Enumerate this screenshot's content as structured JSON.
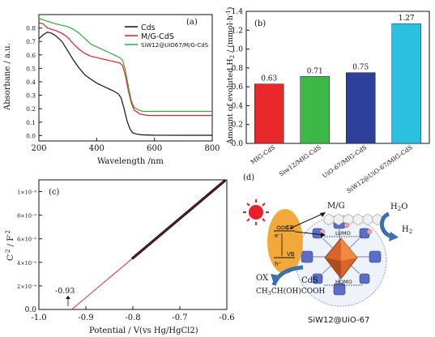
{
  "chart_data": [
    {
      "panel": "(a)",
      "type": "line",
      "xlabel": "Wavelength  /nm",
      "ylabel": "Absorbane / a.u.",
      "xlim": [
        200,
        800
      ],
      "ylim": [
        -0.04,
        0.9
      ],
      "xticks": [
        200,
        400,
        600,
        800
      ],
      "yticks": [
        0.0,
        0.1,
        0.2,
        0.3,
        0.4,
        0.5,
        0.6,
        0.7,
        0.8
      ],
      "ytick_labels": [
        "0.0",
        "0.1",
        "0.2",
        "0.3",
        "0.4",
        "0.5",
        "0.6",
        "0.7",
        "0.8"
      ],
      "legend_position": "top-right",
      "series": [
        {
          "name": "Cds",
          "color": "#111111",
          "points": [
            [
              200,
              0.72
            ],
            [
              215,
              0.75
            ],
            [
              230,
              0.77
            ],
            [
              245,
              0.76
            ],
            [
              260,
              0.74
            ],
            [
              280,
              0.7
            ],
            [
              300,
              0.63
            ],
            [
              320,
              0.56
            ],
            [
              340,
              0.5
            ],
            [
              360,
              0.45
            ],
            [
              380,
              0.42
            ],
            [
              400,
              0.39
            ],
            [
              420,
              0.37
            ],
            [
              440,
              0.35
            ],
            [
              460,
              0.33
            ],
            [
              475,
              0.31
            ],
            [
              485,
              0.28
            ],
            [
              495,
              0.2
            ],
            [
              505,
              0.11
            ],
            [
              515,
              0.05
            ],
            [
              525,
              0.02
            ],
            [
              540,
              0.01
            ],
            [
              560,
              0.005
            ],
            [
              600,
              0.003
            ],
            [
              700,
              0.002
            ],
            [
              800,
              0.002
            ]
          ]
        },
        {
          "name": "M/G-CdS",
          "color": "#e02020",
          "points": [
            [
              200,
              0.84
            ],
            [
              215,
              0.83
            ],
            [
              230,
              0.8
            ],
            [
              245,
              0.79
            ],
            [
              260,
              0.78
            ],
            [
              280,
              0.76
            ],
            [
              300,
              0.73
            ],
            [
              320,
              0.68
            ],
            [
              340,
              0.64
            ],
            [
              360,
              0.61
            ],
            [
              380,
              0.59
            ],
            [
              400,
              0.58
            ],
            [
              420,
              0.57
            ],
            [
              440,
              0.56
            ],
            [
              460,
              0.55
            ],
            [
              480,
              0.54
            ],
            [
              490,
              0.52
            ],
            [
              500,
              0.44
            ],
            [
              510,
              0.33
            ],
            [
              520,
              0.24
            ],
            [
              530,
              0.19
            ],
            [
              550,
              0.16
            ],
            [
              575,
              0.15
            ],
            [
              600,
              0.15
            ],
            [
              700,
              0.15
            ],
            [
              800,
              0.15
            ]
          ]
        },
        {
          "name": "SiW12@UiO67/M/G-CdS",
          "color": "#30b030",
          "points": [
            [
              200,
              0.87
            ],
            [
              215,
              0.86
            ],
            [
              230,
              0.85
            ],
            [
              245,
              0.84
            ],
            [
              260,
              0.83
            ],
            [
              280,
              0.82
            ],
            [
              300,
              0.81
            ],
            [
              320,
              0.79
            ],
            [
              340,
              0.76
            ],
            [
              360,
              0.72
            ],
            [
              380,
              0.68
            ],
            [
              400,
              0.66
            ],
            [
              420,
              0.64
            ],
            [
              440,
              0.62
            ],
            [
              460,
              0.6
            ],
            [
              480,
              0.58
            ],
            [
              490,
              0.56
            ],
            [
              500,
              0.48
            ],
            [
              510,
              0.36
            ],
            [
              520,
              0.26
            ],
            [
              530,
              0.21
            ],
            [
              545,
              0.19
            ],
            [
              560,
              0.18
            ],
            [
              600,
              0.18
            ],
            [
              700,
              0.18
            ],
            [
              800,
              0.18
            ]
          ]
        }
      ]
    },
    {
      "panel": "(b)",
      "type": "bar",
      "ylabel": "Amount of evolution H2 / (mmol·h⁻¹)",
      "ylim": [
        0,
        1.4
      ],
      "yticks": [
        0.0,
        0.2,
        0.4,
        0.6,
        0.8,
        1.0,
        1.2,
        1.4
      ],
      "categories": [
        "MIG-CdS",
        "Siw12/MIG-CdS",
        "UiO-67/MIG-CdS",
        "SiW12@UiO-67/MIG-CdS"
      ],
      "values": [
        0.63,
        0.71,
        0.75,
        1.27
      ],
      "value_labels": [
        "0.63",
        "0.71",
        "0.75",
        "1.27"
      ],
      "colors": [
        "#e8282a",
        "#3cb846",
        "#2e3f9a",
        "#2cc0e0"
      ]
    },
    {
      "panel": "(c)",
      "type": "scatter",
      "xlabel": "Potential / V(vs Hg/HgCl2)",
      "ylabel": "C-2 / F-2",
      "xlim": [
        -1.0,
        -0.6
      ],
      "ylim": [
        0,
        1.1e-08
      ],
      "xticks": [
        -1.0,
        -0.9,
        -0.8,
        -0.7,
        -0.6
      ],
      "xtick_labels": [
        "-1.0",
        "-0.9",
        "-0.8",
        "-0.7",
        "-0.6"
      ],
      "yticks": [
        0,
        2e-09,
        4e-09,
        6e-09,
        8e-09,
        1e-08
      ],
      "ytick_labels": [
        "0.0",
        "2×10⁻⁹",
        "4×10⁻⁹",
        "6×10⁻⁹",
        "8×10⁻⁹",
        "1×10⁻⁸"
      ],
      "fit_line": [
        [
          -0.93,
          0
        ],
        [
          -0.605,
          1.09e-08
        ]
      ],
      "data_range": [
        -0.8,
        -0.605
      ],
      "annotation": "-0.93"
    }
  ],
  "panel_labels": {
    "a": "(a)",
    "b": "(b)",
    "c": "(c)",
    "d": "(d)"
  },
  "diagram": {
    "mg": "M/G",
    "h2o": "H2O",
    "h2": "H2",
    "cb": "CB",
    "vb": "VB",
    "e": "e⁻",
    "h": "h⁺",
    "lumo": "LUMO",
    "homo": "HOMO",
    "ox": "OX",
    "cds": "CdS",
    "reagent": "CH3CH(OH)COOH",
    "caption": "SiW12@UiO-67"
  },
  "colors": {
    "sun": "#e8202a",
    "arrow_blue": "#3a6fb0",
    "cds_orange": "#f3a93a",
    "octa_orange": "#d8662a",
    "mof_blue": "#5a6ec8"
  }
}
